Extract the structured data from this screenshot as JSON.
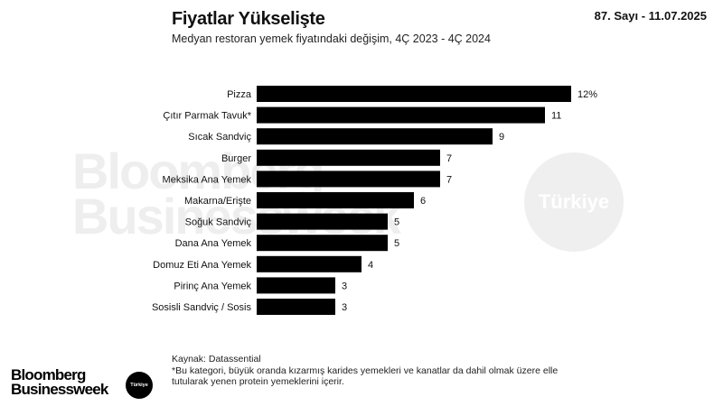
{
  "header": {
    "title": "Fiyatlar Yükselişte",
    "subtitle": "Medyan restoran yemek fiyatındaki değişim, 4Ç 2023 - 4Ç 2024",
    "issue": "87. Sayı - 11.07.2025"
  },
  "watermark": {
    "line1": "Bloomberg",
    "line2": "Businessweek",
    "badge": "Türkiye"
  },
  "chart_data": {
    "type": "bar",
    "orientation": "horizontal",
    "categories": [
      "Pizza",
      "Çıtır Parmak Tavuk*",
      "Sıcak Sandviç",
      "Burger",
      "Meksika Ana Yemek",
      "Makarna/Erişte",
      "Soğuk Sandviç",
      "Dana Ana Yemek",
      "Domuz Eti Ana Yemek",
      "Pirinç Ana Yemek",
      "Sosisli Sandviç / Sosis"
    ],
    "values": [
      12,
      11,
      9,
      7,
      7,
      6,
      5,
      5,
      4,
      3,
      3
    ],
    "value_labels": [
      "12%",
      "11",
      "9",
      "7",
      "7",
      "6",
      "5",
      "5",
      "4",
      "3",
      "3"
    ],
    "bar_color": "#000000",
    "xlim": [
      0,
      12
    ]
  },
  "footer": {
    "source": "Kaynak: Datassential",
    "note_line1": "*Bu kategori, büyük oranda kızarmış karides yemekleri ve kanatlar da dahil olmak üzere elle",
    "note_line2": "tutularak yenen protein yemeklerini içerir.",
    "logo_line1": "Bloomberg",
    "logo_line2": "Businessweek",
    "logo_badge": "Türkiye"
  }
}
